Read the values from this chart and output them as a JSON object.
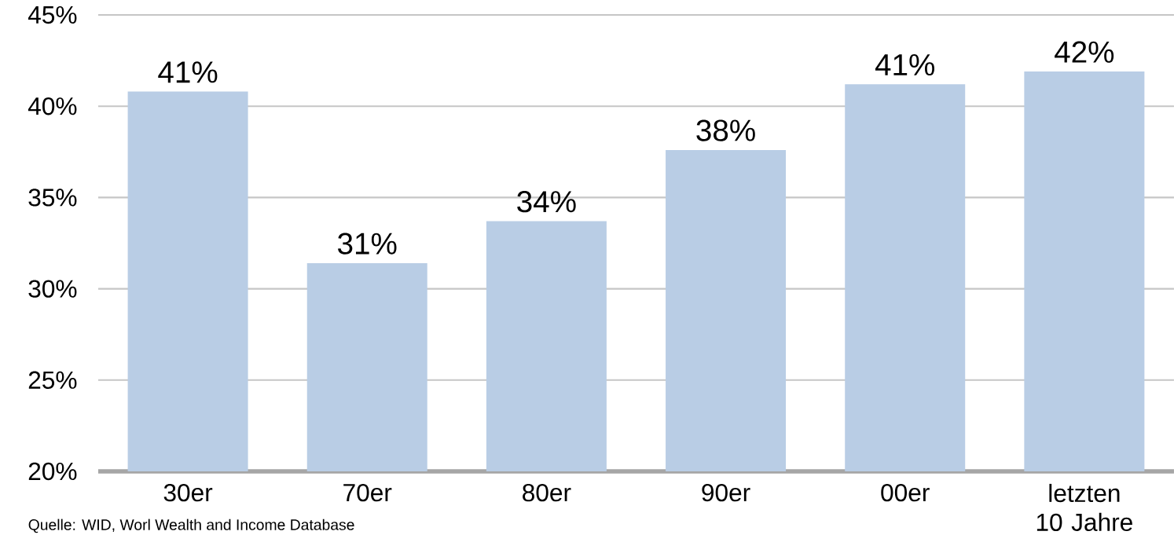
{
  "chart_data": {
    "type": "bar",
    "categories": [
      "30er",
      "70er",
      "80er",
      "90er",
      "00er",
      "letzten 10 Jahre"
    ],
    "values": [
      40.8,
      31.4,
      33.7,
      37.6,
      41.2,
      41.9
    ],
    "value_labels": [
      "41%",
      "31%",
      "34%",
      "38%",
      "41%",
      "42%"
    ],
    "color": "#b9cde5",
    "ylim": [
      20,
      45
    ],
    "yticks": [
      {
        "value": 20,
        "label": "20%"
      },
      {
        "value": 25,
        "label": "25%"
      },
      {
        "value": 30,
        "label": "30%"
      },
      {
        "value": 35,
        "label": "35%"
      },
      {
        "value": 40,
        "label": "40%"
      },
      {
        "value": 45,
        "label": "45%"
      }
    ],
    "grid": "y",
    "annotations": [
      "Quelle: WID, Worl Wealth and Income Database"
    ]
  }
}
